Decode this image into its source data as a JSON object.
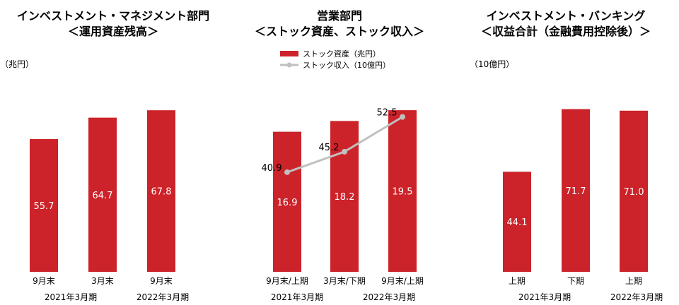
{
  "colors": {
    "bar": "#cc2229",
    "line": "#c0c0c0",
    "bar_label": "#ffffff"
  },
  "chart_data": [
    {
      "type": "bar",
      "title": "インベストメント・マネジメント部門",
      "subtitle": "＜運用資産残高＞",
      "unit": "（兆円）",
      "categories": [
        "9月末",
        "3月末",
        "9月末"
      ],
      "values": [
        55.7,
        64.7,
        67.8
      ],
      "ylim": [
        0,
        80
      ],
      "group_labels": [
        "2021年3月期",
        "2022年3月期"
      ],
      "grid": false
    },
    {
      "type": "bar",
      "title": "営業部門",
      "subtitle": "＜ストック資産、ストック収入＞",
      "categories": [
        "9月末/上期",
        "3月末/下期",
        "9月末/上期"
      ],
      "series": [
        {
          "name": "ストック資産（兆円）",
          "type": "bar",
          "values": [
            16.9,
            18.2,
            19.5
          ]
        },
        {
          "name": "ストック収入（10億円）",
          "type": "line",
          "values": [
            40.9,
            45.2,
            52.5
          ]
        }
      ],
      "ylim": [
        0,
        23
      ],
      "line_ylim": [
        20,
        60
      ],
      "legend": "top",
      "group_labels": [
        "2021年3月期",
        "2022年3月期"
      ],
      "grid": false
    },
    {
      "type": "bar",
      "title": "インベストメント・バンキング",
      "subtitle": "＜収益合計（金融費用控除後）＞",
      "unit": "（10億円）",
      "categories": [
        "上期",
        "下期",
        "上期"
      ],
      "values": [
        44.1,
        71.7,
        71.0
      ],
      "ylim": [
        0,
        84
      ],
      "group_labels": [
        "2021年3月期",
        "2022年3月期"
      ],
      "grid": false
    }
  ]
}
